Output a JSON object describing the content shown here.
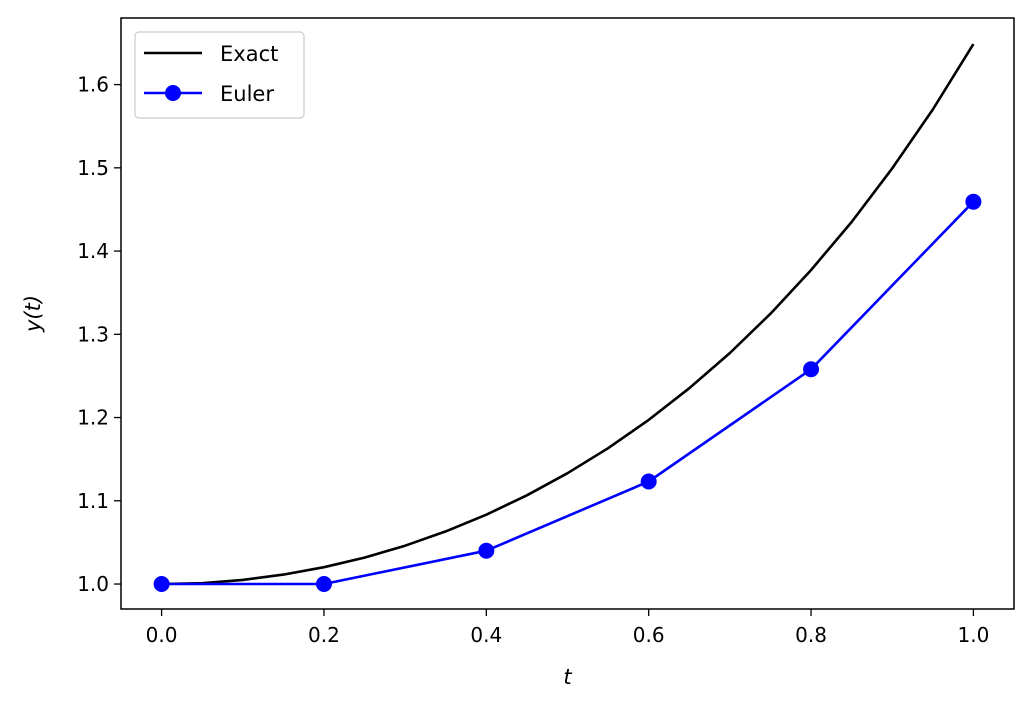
{
  "chart_data": {
    "type": "line",
    "title": "",
    "xlabel": "t",
    "ylabel": "y(t)",
    "xlim": [
      -0.05,
      1.05
    ],
    "ylim": [
      0.97,
      1.68
    ],
    "x_ticks": [
      "0.0",
      "0.2",
      "0.4",
      "0.6",
      "0.8",
      "1.0"
    ],
    "y_ticks": [
      "1.0",
      "1.1",
      "1.2",
      "1.3",
      "1.4",
      "1.5",
      "1.6"
    ],
    "grid": false,
    "legend_position": "top-left",
    "series": [
      {
        "name": "Exact",
        "color": "#000000",
        "marker": "none",
        "x": [
          0.0,
          0.05,
          0.1,
          0.15,
          0.2,
          0.25,
          0.3,
          0.35,
          0.4,
          0.45,
          0.5,
          0.55,
          0.6,
          0.65,
          0.7,
          0.75,
          0.8,
          0.85,
          0.9,
          0.95,
          1.0
        ],
        "y": [
          1.0,
          1.001,
          1.005,
          1.0113,
          1.0202,
          1.0317,
          1.046,
          1.0632,
          1.0833,
          1.1066,
          1.1331,
          1.1632,
          1.1972,
          1.2352,
          1.2776,
          1.3248,
          1.3771,
          1.4349,
          1.4993,
          1.5701,
          1.6487
        ]
      },
      {
        "name": "Euler",
        "color": "#0000ff",
        "marker": "circle",
        "x": [
          0.0,
          0.2,
          0.4,
          0.6,
          0.8,
          1.0
        ],
        "y": [
          1.0,
          1.0,
          1.04,
          1.1232,
          1.258,
          1.4593
        ]
      }
    ]
  }
}
